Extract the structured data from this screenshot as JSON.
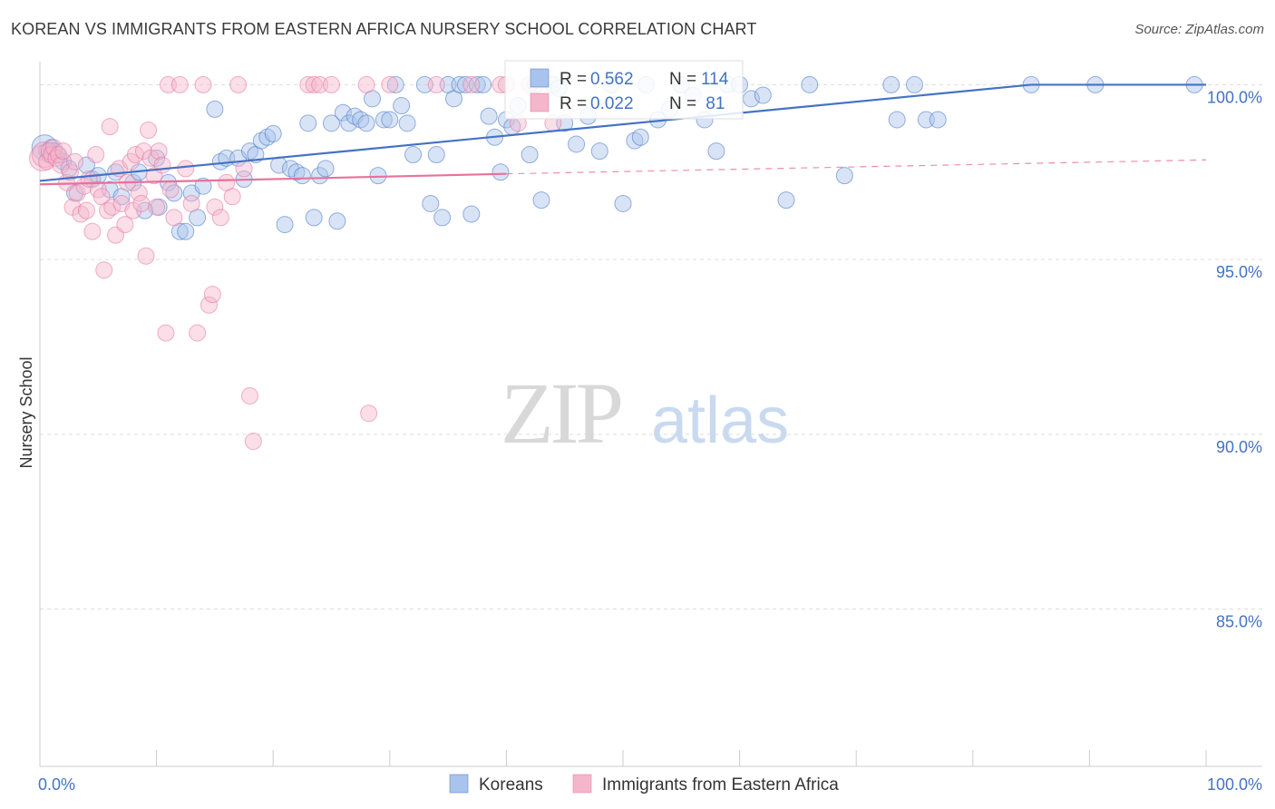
{
  "title": "KOREAN VS IMMIGRANTS FROM EASTERN AFRICA NURSERY SCHOOL CORRELATION CHART",
  "source": "Source: ZipAtlas.com",
  "watermark": {
    "zip": "ZIP",
    "atlas": "atlas"
  },
  "colors": {
    "blue": "#4472c4",
    "blue_fill": "#a9c4ec",
    "pink": "#e8719a",
    "pink_fill": "#f4b6cb",
    "grid": "#dddddd"
  },
  "chart_data": {
    "type": "scatter",
    "title": "KOREAN VS IMMIGRANTS FROM EASTERN AFRICA NURSERY SCHOOL CORRELATION CHART",
    "xlabel": "",
    "ylabel": "Nursery School",
    "xlim": [
      0,
      100
    ],
    "ylim": [
      80.5,
      100.4
    ],
    "x_ticks": [
      {
        "v": 0,
        "label": "0.0%"
      },
      {
        "v": 100,
        "label": "100.0%"
      }
    ],
    "y_ticks": [
      {
        "v": 100,
        "label": "100.0%"
      },
      {
        "v": 95,
        "label": "95.0%"
      },
      {
        "v": 90,
        "label": "90.0%"
      },
      {
        "v": 85,
        "label": "85.0%"
      }
    ],
    "stats": [
      {
        "r_label": "R = ",
        "r": "0.562",
        "n_label": "N = ",
        "n": "114"
      },
      {
        "r_label": "R = ",
        "r": "0.022",
        "n_label": "N = ",
        "n": " 81"
      }
    ],
    "series": [
      {
        "name": "Koreans",
        "color": "#4472c4",
        "trend": {
          "x0": 0,
          "y0": 97.25,
          "x1": 85,
          "y1": 100.0,
          "x2": 100,
          "y2": 100.0
        },
        "points": [
          [
            0.4,
            98.2
          ],
          [
            0.6,
            98.1
          ],
          [
            0.8,
            98.0
          ],
          [
            1.0,
            98.2
          ],
          [
            1.2,
            98.1
          ],
          [
            1.5,
            98.0
          ],
          [
            2.0,
            97.8
          ],
          [
            2.5,
            97.6
          ],
          [
            3,
            96.9
          ],
          [
            4,
            97.7
          ],
          [
            4.5,
            97.3
          ],
          [
            5,
            97.4
          ],
          [
            6,
            97.0
          ],
          [
            6.5,
            97.5
          ],
          [
            7,
            96.8
          ],
          [
            8,
            97.2
          ],
          [
            8.5,
            97.5
          ],
          [
            9,
            96.4
          ],
          [
            10,
            97.9
          ],
          [
            10.2,
            96.5
          ],
          [
            11,
            97.2
          ],
          [
            11.5,
            96.9
          ],
          [
            12,
            95.8
          ],
          [
            12.5,
            95.8
          ],
          [
            13,
            96.9
          ],
          [
            13.5,
            96.2
          ],
          [
            14,
            97.1
          ],
          [
            15,
            99.3
          ],
          [
            15.5,
            97.8
          ],
          [
            16,
            97.9
          ],
          [
            17,
            97.9
          ],
          [
            17.5,
            97.3
          ],
          [
            18,
            98.1
          ],
          [
            18.5,
            98.0
          ],
          [
            19,
            98.4
          ],
          [
            19.5,
            98.5
          ],
          [
            20,
            98.6
          ],
          [
            20.5,
            97.7
          ],
          [
            21,
            96.0
          ],
          [
            21.5,
            97.6
          ],
          [
            22,
            97.5
          ],
          [
            22.5,
            97.4
          ],
          [
            23,
            98.9
          ],
          [
            23.5,
            96.2
          ],
          [
            24,
            97.4
          ],
          [
            24.5,
            97.6
          ],
          [
            25,
            98.9
          ],
          [
            25.5,
            96.1
          ],
          [
            26,
            99.2
          ],
          [
            26.5,
            98.9
          ],
          [
            27,
            99.1
          ],
          [
            27.5,
            99.0
          ],
          [
            28,
            98.9
          ],
          [
            28.5,
            99.6
          ],
          [
            29,
            97.4
          ],
          [
            29.5,
            99.0
          ],
          [
            30,
            99.0
          ],
          [
            30.5,
            100.0
          ],
          [
            31,
            99.4
          ],
          [
            31.5,
            98.9
          ],
          [
            32,
            98.0
          ],
          [
            33,
            100.0
          ],
          [
            33.5,
            96.6
          ],
          [
            34,
            98.0
          ],
          [
            34.5,
            96.2
          ],
          [
            35,
            100.0
          ],
          [
            35.5,
            99.6
          ],
          [
            36,
            100.0
          ],
          [
            36.5,
            100.0
          ],
          [
            37,
            96.3
          ],
          [
            37.5,
            100.0
          ],
          [
            38,
            100.0
          ],
          [
            38.5,
            99.1
          ],
          [
            39,
            98.5
          ],
          [
            39.5,
            97.5
          ],
          [
            40,
            99.0
          ],
          [
            40.5,
            98.8
          ],
          [
            41,
            99.4
          ],
          [
            42,
            98.0
          ],
          [
            42.5,
            100.0
          ],
          [
            43,
            96.7
          ],
          [
            44,
            100.0
          ],
          [
            44.5,
            99.9
          ],
          [
            45,
            98.9
          ],
          [
            46,
            98.3
          ],
          [
            47,
            99.1
          ],
          [
            48,
            98.1
          ],
          [
            49,
            100.0
          ],
          [
            50,
            96.6
          ],
          [
            51,
            98.4
          ],
          [
            51.5,
            98.5
          ],
          [
            52,
            100.0
          ],
          [
            53,
            99.0
          ],
          [
            54,
            99.3
          ],
          [
            55,
            100.0
          ],
          [
            56,
            99.7
          ],
          [
            57,
            99.0
          ],
          [
            58,
            98.1
          ],
          [
            59,
            100.0
          ],
          [
            60,
            100.0
          ],
          [
            61,
            99.6
          ],
          [
            62,
            99.7
          ],
          [
            64,
            96.7
          ],
          [
            66,
            100.0
          ],
          [
            69,
            97.4
          ],
          [
            73,
            100.0
          ],
          [
            73.5,
            99.0
          ],
          [
            75,
            100.0
          ],
          [
            76,
            99.0
          ],
          [
            77,
            99.0
          ],
          [
            85,
            100.0
          ],
          [
            90.5,
            100.0
          ],
          [
            99,
            100.0
          ]
        ]
      },
      {
        "name": "Immigrants from Eastern Africa",
        "color": "#e8719a",
        "trend": {
          "x0": 0,
          "y0": 97.15,
          "x1": 40,
          "y1": 97.45,
          "x2": 100,
          "y2": 97.85
        },
        "points": [
          [
            0.2,
            97.9
          ],
          [
            0.4,
            98.0
          ],
          [
            0.6,
            97.8
          ],
          [
            0.8,
            98.1
          ],
          [
            1.0,
            98.0
          ],
          [
            1.2,
            98.2
          ],
          [
            1.4,
            97.9
          ],
          [
            1.6,
            98.0
          ],
          [
            1.8,
            97.7
          ],
          [
            2.0,
            98.1
          ],
          [
            2.3,
            97.2
          ],
          [
            2.6,
            97.5
          ],
          [
            2.8,
            96.5
          ],
          [
            3.0,
            97.8
          ],
          [
            3.2,
            96.9
          ],
          [
            3.5,
            96.3
          ],
          [
            3.8,
            97.1
          ],
          [
            4.0,
            96.4
          ],
          [
            4.2,
            97.3
          ],
          [
            4.5,
            95.8
          ],
          [
            4.8,
            98.0
          ],
          [
            5.0,
            97.0
          ],
          [
            5.3,
            96.8
          ],
          [
            5.5,
            94.7
          ],
          [
            5.8,
            96.4
          ],
          [
            6.0,
            98.8
          ],
          [
            6.2,
            96.5
          ],
          [
            6.5,
            95.7
          ],
          [
            6.8,
            97.6
          ],
          [
            7.0,
            96.6
          ],
          [
            7.3,
            96.0
          ],
          [
            7.5,
            97.2
          ],
          [
            7.8,
            97.8
          ],
          [
            8.0,
            96.4
          ],
          [
            8.2,
            98.0
          ],
          [
            8.5,
            96.9
          ],
          [
            8.7,
            96.6
          ],
          [
            8.9,
            98.1
          ],
          [
            9.1,
            95.1
          ],
          [
            9.3,
            98.7
          ],
          [
            9.5,
            97.9
          ],
          [
            9.8,
            97.4
          ],
          [
            10.0,
            96.5
          ],
          [
            10.2,
            98.1
          ],
          [
            10.5,
            97.7
          ],
          [
            10.8,
            92.9
          ],
          [
            11.0,
            100.0
          ],
          [
            11.2,
            97.0
          ],
          [
            11.5,
            96.2
          ],
          [
            12.0,
            100.0
          ],
          [
            12.5,
            97.6
          ],
          [
            13.0,
            96.6
          ],
          [
            13.5,
            92.9
          ],
          [
            14.0,
            100.0
          ],
          [
            14.5,
            93.7
          ],
          [
            14.8,
            94.0
          ],
          [
            15.0,
            96.5
          ],
          [
            15.5,
            96.2
          ],
          [
            16.0,
            97.2
          ],
          [
            16.5,
            96.8
          ],
          [
            17.0,
            100.0
          ],
          [
            17.5,
            97.6
          ],
          [
            18.0,
            91.1
          ],
          [
            18.3,
            89.8
          ],
          [
            23.0,
            100.0
          ],
          [
            23.5,
            100.0
          ],
          [
            24.0,
            100.0
          ],
          [
            25.0,
            100.0
          ],
          [
            28.0,
            100.0
          ],
          [
            28.2,
            90.6
          ],
          [
            30.0,
            100.0
          ],
          [
            34.0,
            100.0
          ],
          [
            37.0,
            100.0
          ],
          [
            39.5,
            100.0
          ],
          [
            40.0,
            100.0
          ],
          [
            41.0,
            98.9
          ],
          [
            42.0,
            100.0
          ],
          [
            44.0,
            98.9
          ]
        ]
      }
    ]
  }
}
